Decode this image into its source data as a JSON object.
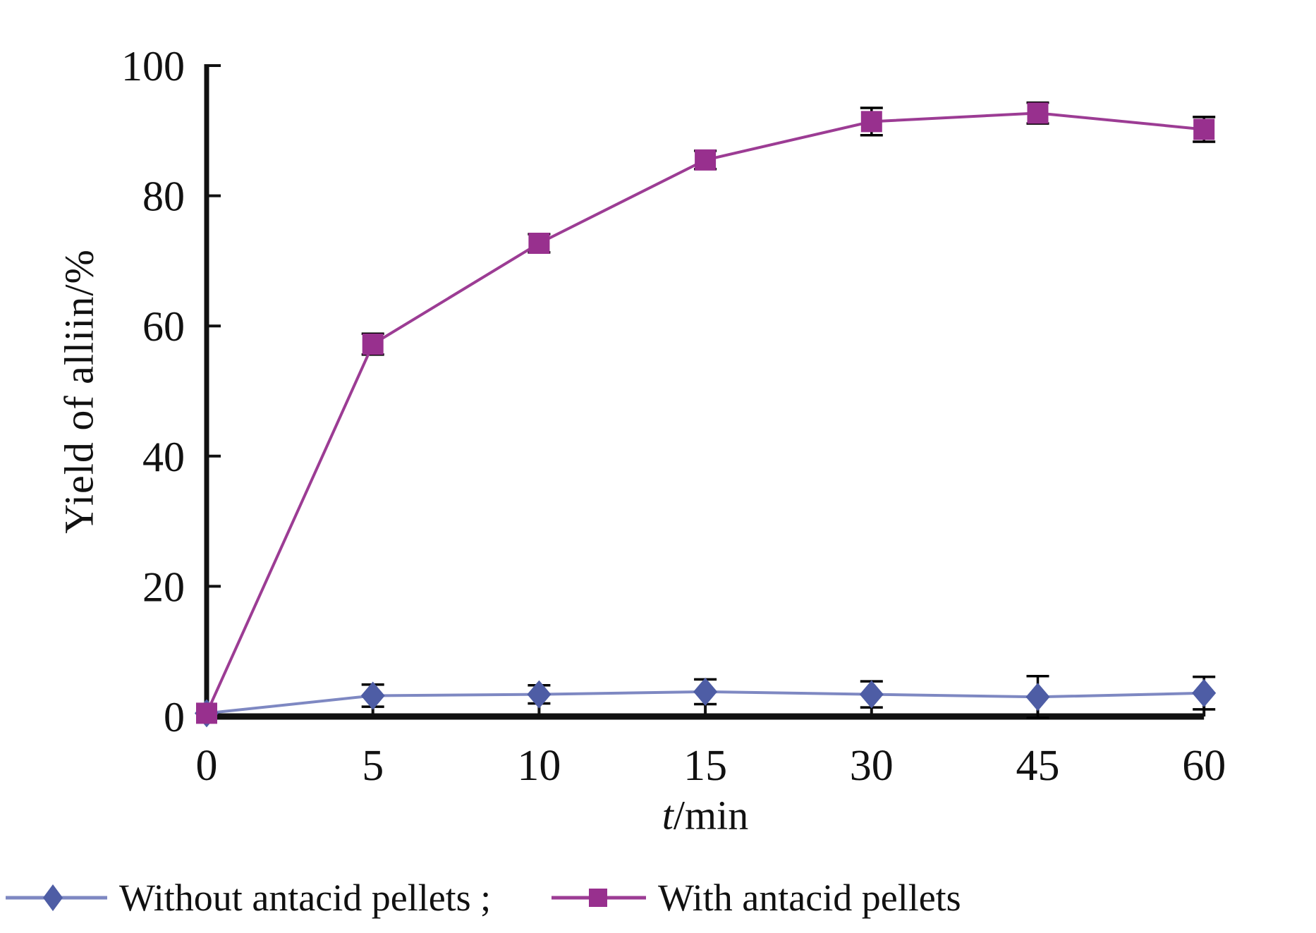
{
  "axes": {
    "y_title": "Yield of alliin/%",
    "x_title_var": "t",
    "x_title_unit": "/min"
  },
  "legend": {
    "items": [
      {
        "label": "Without antacid pellets ;"
      },
      {
        "label": "With antacid pellets"
      }
    ]
  },
  "chart_data": {
    "type": "line",
    "title": "",
    "xlabel": "t/min",
    "ylabel": "Yield of alliin/%",
    "categories": [
      0,
      5,
      10,
      15,
      30,
      45,
      60
    ],
    "y_ticks": [
      0,
      20,
      40,
      60,
      80,
      100
    ],
    "ylim": [
      0,
      100
    ],
    "grid": false,
    "legend_position": "bottom",
    "error_bar_color": "#000000",
    "axis_color": "#111111",
    "series": [
      {
        "name": "Without antacid pellets",
        "marker": "diamond",
        "marker_color": "#4e5da5",
        "line_color": "#7e88c2",
        "values": [
          0.5,
          3.2,
          3.4,
          3.8,
          3.4,
          3.0,
          3.6
        ],
        "error_bars": [
          0,
          1.7,
          1.4,
          1.9,
          2.0,
          3.2,
          2.5
        ]
      },
      {
        "name": "With antacid pellets",
        "marker": "square",
        "marker_color": "#98308e",
        "line_color": "#9c3c94",
        "values": [
          0.5,
          57.2,
          72.7,
          85.5,
          91.4,
          92.7,
          90.2
        ],
        "error_bars": [
          0,
          1.6,
          1.4,
          1.4,
          2.1,
          1.6,
          1.9
        ]
      }
    ]
  }
}
